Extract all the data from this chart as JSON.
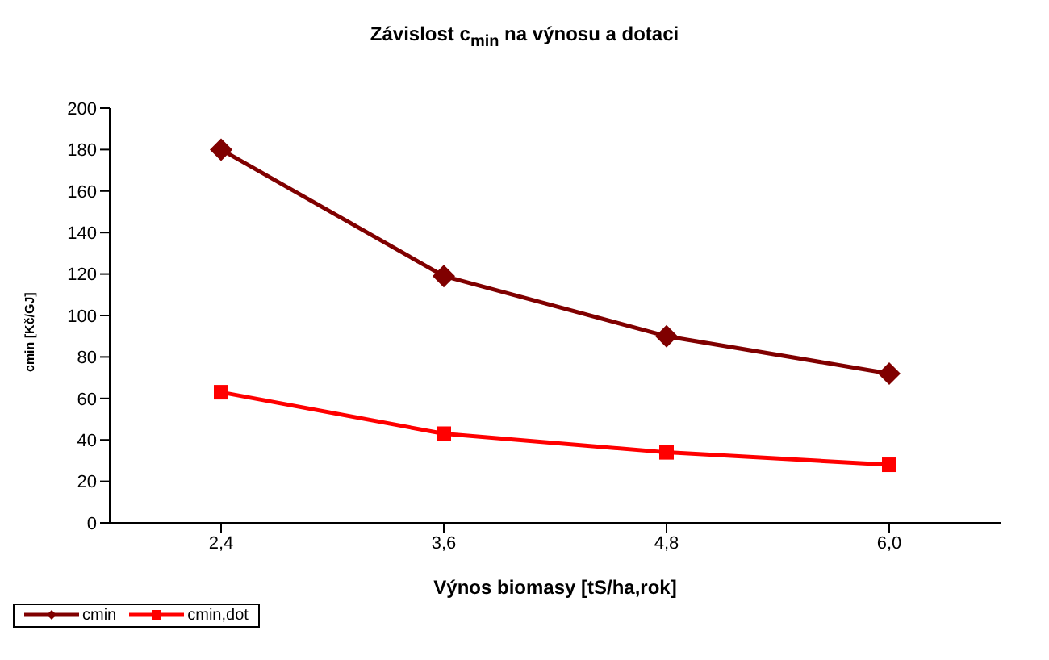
{
  "chart_data": {
    "type": "line",
    "title": "Závislost c$_{min}$ na výnosu a dotaci",
    "xlabel": "Výnos biomasy [tS/ha,rok]",
    "ylabel": "cmin [Kč/GJ]",
    "categories": [
      "2,4",
      "3,6",
      "4,8",
      "6,0"
    ],
    "series": [
      {
        "name": "cmin",
        "color": "#800000",
        "marker": "diamond",
        "values": [
          180,
          119,
          90,
          72
        ]
      },
      {
        "name": "cmin,dot",
        "color": "#ff0000",
        "marker": "square",
        "values": [
          63,
          43,
          34,
          28
        ]
      }
    ],
    "ylim": [
      0,
      200
    ],
    "yticks": [
      0,
      20,
      40,
      60,
      80,
      100,
      120,
      140,
      160,
      180,
      200
    ],
    "grid": false,
    "legend": "bottom"
  }
}
